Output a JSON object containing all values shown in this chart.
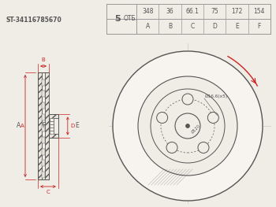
{
  "part_number": "ST-34116785670",
  "otb": "5",
  "otb_label": "ОТБ.",
  "columns": [
    "A",
    "B",
    "C",
    "D",
    "E",
    "F"
  ],
  "values": [
    "348",
    "36",
    "66.1",
    "75",
    "172",
    "154"
  ],
  "dim_label_hole": "Ø16.6(x5)",
  "dim_label_pcd": "Ø120",
  "bg_color": "#f0ede6",
  "line_color": "#555555",
  "red_color": "#cc2222",
  "table_border": "#999999",
  "crosshair_color": "#d4c8b8"
}
